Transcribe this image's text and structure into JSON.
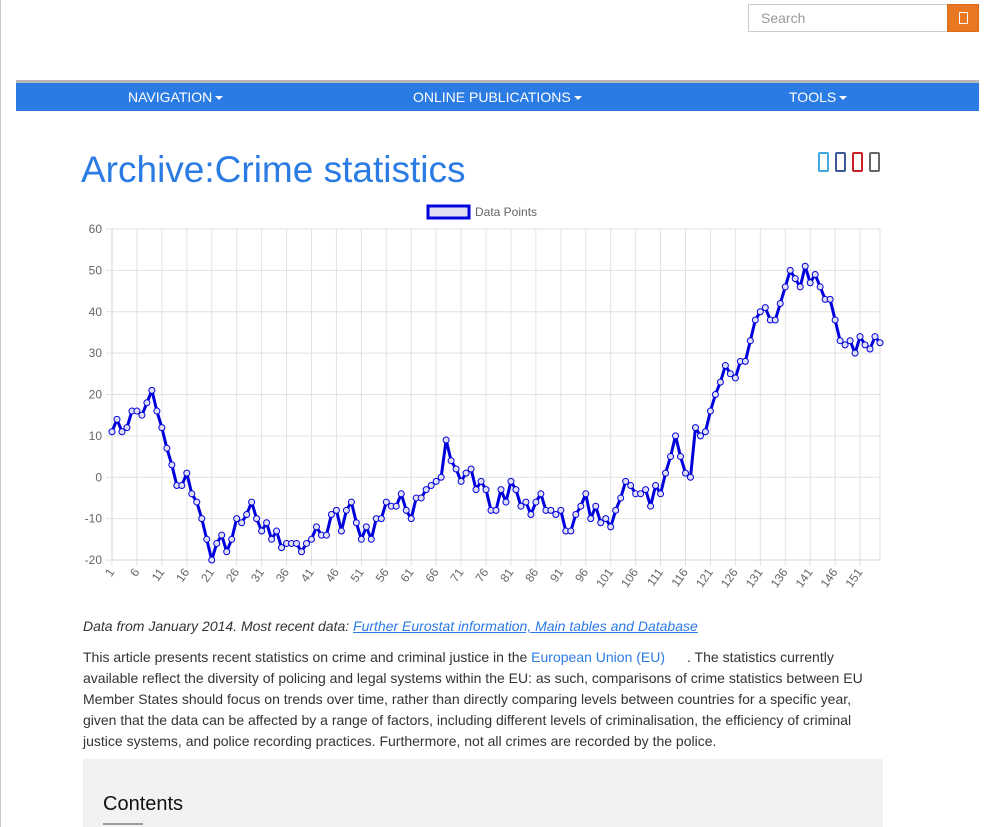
{
  "search": {
    "placeholder": "Search"
  },
  "navbar": {
    "items": [
      {
        "label": "NAVIGATION"
      },
      {
        "label": "ONLINE PUBLICATIONS"
      },
      {
        "label": "TOOLS"
      }
    ]
  },
  "page": {
    "title": "Archive:Crime statistics"
  },
  "share_icons": [
    "twitter-icon",
    "facebook-icon",
    "pinterest-icon",
    "share-icon"
  ],
  "colors": {
    "brand_blue": "#2b7be4",
    "search_orange": "#e87722",
    "series_line": "#0000dd",
    "legend_fill": "#e0e0f2"
  },
  "chart_data": {
    "type": "line",
    "legend": [
      "Data Points"
    ],
    "legend_position": "top",
    "grid": true,
    "ylim": [
      -20,
      60
    ],
    "yticks": [
      -20,
      -10,
      0,
      10,
      20,
      30,
      40,
      50,
      60
    ],
    "xtick_labels": [
      "1",
      "6",
      "11",
      "16",
      "21",
      "26",
      "31",
      "36",
      "41",
      "46",
      "51",
      "56",
      "61",
      "66",
      "71",
      "76",
      "81",
      "86",
      "91",
      "96",
      "101",
      "106",
      "111",
      "116",
      "121",
      "126",
      "131",
      "136",
      "141",
      "146",
      "151"
    ],
    "x_start": 1,
    "series": [
      {
        "name": "Data Points",
        "values": [
          11,
          14,
          11,
          12,
          16,
          16,
          15,
          18,
          21,
          16,
          12,
          7,
          3,
          -2,
          -2,
          1,
          -4,
          -6,
          -10,
          -15,
          -20,
          -16,
          -14,
          -18,
          -15,
          -10,
          -11,
          -9,
          -6,
          -10,
          -13,
          -11,
          -15,
          -13,
          -17,
          -16,
          -16,
          -16,
          -18,
          -16,
          -15,
          -12,
          -14,
          -14,
          -9,
          -8,
          -13,
          -8,
          -6,
          -11,
          -15,
          -12,
          -15,
          -10,
          -10,
          -6,
          -7,
          -7,
          -4,
          -8,
          -10,
          -5,
          -5,
          -3,
          -2,
          -1,
          0,
          9,
          4,
          2,
          -1,
          1,
          2,
          -3,
          -1,
          -3,
          -8,
          -8,
          -3,
          -6,
          -1,
          -3,
          -7,
          -6,
          -9,
          -6,
          -4,
          -8,
          -8,
          -9,
          -8,
          -13,
          -13,
          -9,
          -7,
          -4,
          -10,
          -7,
          -11,
          -10,
          -12,
          -8,
          -5,
          -1,
          -2,
          -4,
          -4,
          -3,
          -7,
          -2,
          -4,
          1,
          5,
          10,
          5,
          1,
          0,
          12,
          10,
          11,
          16,
          20,
          23,
          27,
          25,
          24,
          28,
          28,
          33,
          38,
          40,
          41,
          38,
          38,
          42,
          46,
          50,
          48,
          46,
          51,
          47,
          49,
          46,
          43,
          43,
          38,
          33,
          32,
          33,
          30,
          34,
          32,
          31,
          34,
          32.5
        ]
      }
    ]
  },
  "caption": {
    "text": "Data from January 2014. Most recent data: ",
    "link": "Further Eurostat information, Main tables and Database"
  },
  "intro": {
    "before_link": "This article presents recent statistics on crime and criminal justice in the ",
    "link": "European Union (EU)",
    "after_link": ". The statistics currently available reflect the diversity of policing and legal systems within the EU: as such, comparisons of crime statistics between EU Member States should focus on trends over time, rather than directly comparing levels between countries for a specific year, given that the data can be affected by a range of factors, including different levels of criminalisation, the efficiency of criminal justice systems, and police recording practices. Furthermore, not all crimes are recorded by the police."
  },
  "contents": {
    "title": "Contents"
  }
}
